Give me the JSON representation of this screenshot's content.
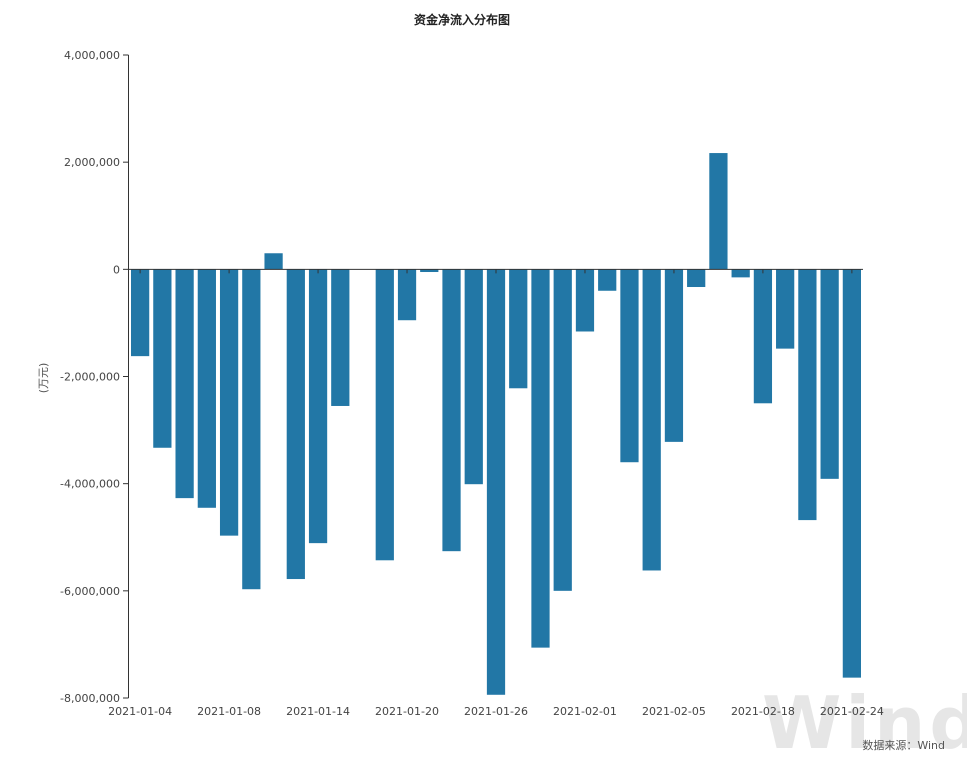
{
  "chart_data": {
    "type": "bar",
    "title": "资金净流入分布图",
    "ylabel": "(万元)",
    "xlabel": "",
    "ylim": [
      -8000000,
      4000000
    ],
    "yticks": [
      4000000,
      2000000,
      0,
      -2000000,
      -4000000,
      -6000000,
      -8000000
    ],
    "ytick_labels": [
      "4,000,000",
      "2,000,000",
      "0",
      "-2,000,000",
      "-4,000,000",
      "-6,000,000",
      "-8,000,000"
    ],
    "xtick_labels": [
      "2021-01-04",
      "2021-01-08",
      "2021-01-14",
      "2021-01-20",
      "2021-01-26",
      "2021-02-01",
      "2021-02-05",
      "2021-02-18",
      "2021-02-24"
    ],
    "xtick_slot_index": [
      0,
      4,
      8,
      12,
      16,
      20,
      24,
      28,
      32
    ],
    "values": [
      -1620000,
      -3330000,
      -4270000,
      -4450000,
      -4970000,
      -5970000,
      300000,
      -5780000,
      -5110000,
      -2550000,
      0,
      -5430000,
      -950000,
      -50000,
      -5260000,
      -4010000,
      -7940000,
      -2220000,
      -7060000,
      -6000000,
      -1160000,
      -400000,
      -3600000,
      -5620000,
      -3220000,
      -330000,
      2170000,
      -150000,
      -2500000,
      -1480000,
      -4680000,
      -3910000,
      -7620000
    ],
    "bar_color": "#2277a6",
    "grid": false,
    "legend": "none"
  },
  "source": "数据来源：Wind",
  "watermark": "Wind"
}
